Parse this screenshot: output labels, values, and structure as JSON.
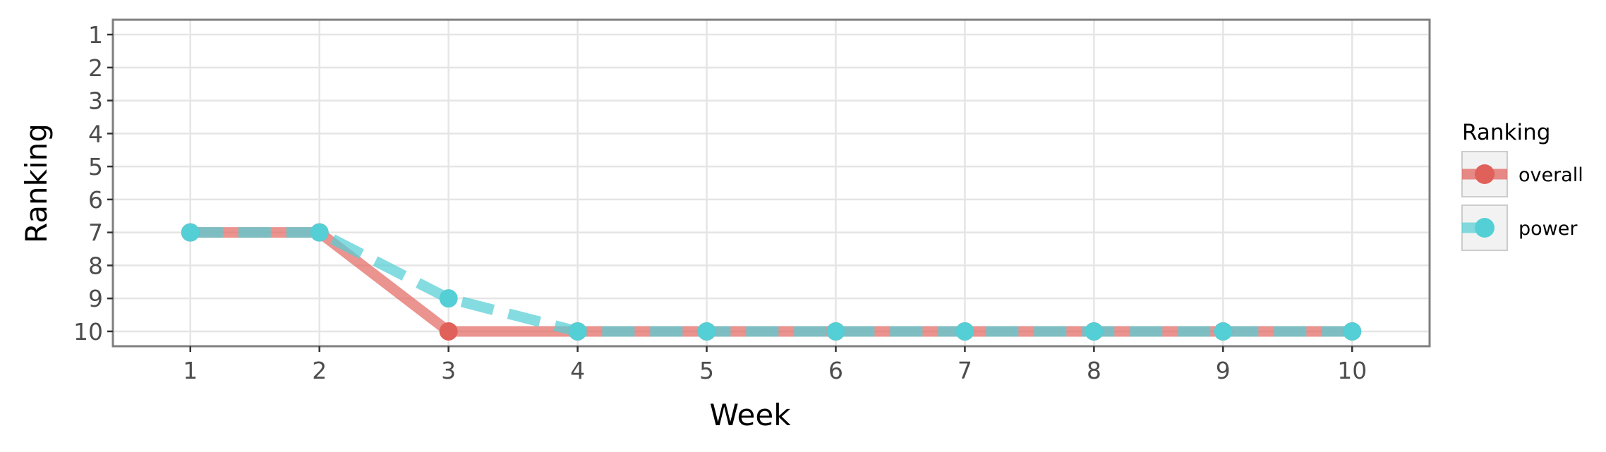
{
  "chart_data": {
    "type": "line",
    "xlabel": "Week",
    "ylabel": "Ranking",
    "x": [
      1,
      2,
      3,
      4,
      5,
      6,
      7,
      8,
      9,
      10
    ],
    "x_ticks": [
      "1",
      "2",
      "3",
      "4",
      "5",
      "6",
      "7",
      "8",
      "9",
      "10"
    ],
    "y_ticks": [
      "1",
      "2",
      "3",
      "4",
      "5",
      "6",
      "7",
      "8",
      "9",
      "10"
    ],
    "xlim": [
      0.4,
      10.6
    ],
    "ylim": [
      10.45,
      0.55
    ],
    "y_reversed": true,
    "grid": true,
    "legend": {
      "title": "Ranking",
      "position": "right"
    },
    "series": [
      {
        "name": "overall",
        "values": [
          7,
          7,
          10,
          10,
          10,
          10,
          10,
          10,
          10,
          10
        ],
        "color": "#e0605a",
        "line_style": "solid"
      },
      {
        "name": "power",
        "values": [
          7,
          7,
          9,
          10,
          10,
          10,
          10,
          10,
          10,
          10
        ],
        "color": "#55cfd6",
        "line_style": "dashed"
      }
    ]
  }
}
